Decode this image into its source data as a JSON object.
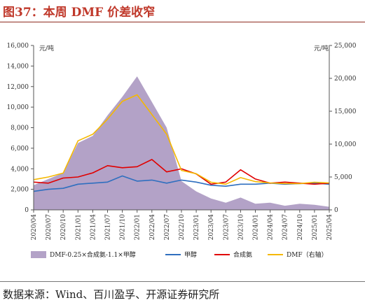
{
  "title": "图37：本周 DMF 价差收窄",
  "source": "数据来源：Wind、百川盈孚、开源证券研究所",
  "chart_data": {
    "type": "line",
    "x": [
      "2020/04",
      "2020/07",
      "2020/10",
      "2021/01",
      "2021/04",
      "2021/07",
      "2021/10",
      "2022/01",
      "2022/04",
      "2022/07",
      "2022/10",
      "2023/01",
      "2023/04",
      "2023/07",
      "2023/10",
      "2024/01",
      "2024/04",
      "2024/07",
      "2024/10",
      "2025/01",
      "2025/04"
    ],
    "x_tick_labels": [
      "2020/04",
      "2020/07",
      "2020/10",
      "2021/01",
      "2021/04",
      "2021/07",
      "2021/10",
      "2022/01",
      "2022/04",
      "2022/07",
      "2022/10",
      "2023/01",
      "2023/04",
      "2023/07",
      "2023/10",
      "2024/01",
      "2024/04",
      "2024/07",
      "2024/10",
      "2025/01",
      "2025/04"
    ],
    "y_left": {
      "unit": "元/吨",
      "ylim": [
        0,
        16000
      ],
      "ticks": [
        "0",
        "2,000",
        "4,000",
        "6,000",
        "8,000",
        "10,000",
        "12,000",
        "14,000",
        "16,000"
      ]
    },
    "y_right": {
      "unit": "元/吨",
      "ylim": [
        0,
        25000
      ],
      "ticks": [
        "0",
        "5,000",
        "10,000",
        "15,000",
        "20,000",
        "25,000"
      ]
    },
    "series": [
      {
        "name": "DMF-0.25×合成氨-1.1×甲醇",
        "type": "area",
        "axis": "left",
        "color": "#b3a2c7",
        "values": [
          2400,
          3000,
          3600,
          6500,
          7200,
          9200,
          11000,
          13000,
          10500,
          8000,
          2800,
          1800,
          1100,
          700,
          1200,
          600,
          700,
          400,
          600,
          500,
          300
        ]
      },
      {
        "name": "甲醇",
        "type": "line",
        "axis": "left",
        "color": "#2f6fbf",
        "values": [
          1800,
          2000,
          2100,
          2500,
          2600,
          2700,
          3300,
          2800,
          2900,
          2600,
          2900,
          2700,
          2400,
          2300,
          2500,
          2500,
          2600,
          2500,
          2550,
          2600,
          2500
        ]
      },
      {
        "name": "合成氨",
        "type": "line",
        "axis": "left",
        "color": "#e00000",
        "values": [
          2700,
          2600,
          3100,
          3200,
          3600,
          4300,
          4100,
          4200,
          4900,
          3700,
          4000,
          3500,
          2500,
          2700,
          3900,
          3000,
          2600,
          2700,
          2600,
          2500,
          2600
        ]
      },
      {
        "name": "DMF（右轴）",
        "type": "line",
        "axis": "right",
        "color": "#f5b800",
        "values": [
          4600,
          5000,
          5600,
          10500,
          11500,
          13800,
          16500,
          17500,
          14500,
          11500,
          6000,
          5500,
          4200,
          3900,
          4900,
          4300,
          4100,
          4000,
          4000,
          4200,
          4100
        ]
      }
    ],
    "legend": "bottom",
    "grid": false
  }
}
